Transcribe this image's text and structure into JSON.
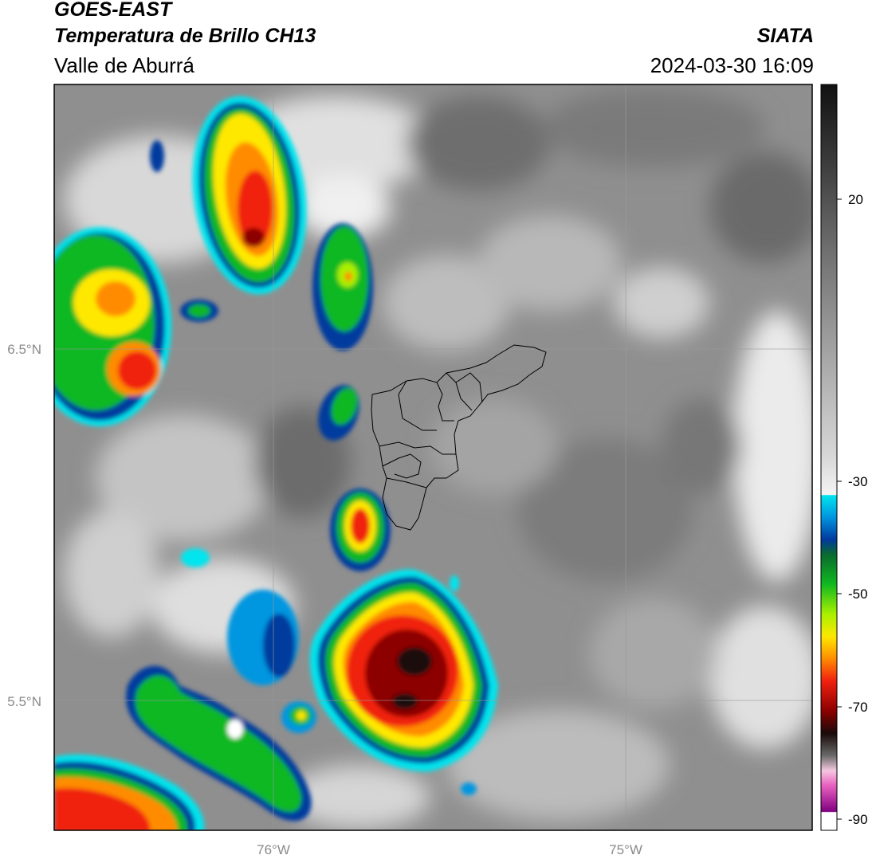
{
  "header": {
    "satellite": "GOES-EAST",
    "product": "Temperatura de Brillo CH13",
    "organization": "SIATA",
    "region": "Valle de Aburrá",
    "timestamp": "2024-03-30 16:09"
  },
  "map_axes": {
    "lat_ticks": [
      "6.5°N",
      "5.5°N"
    ],
    "lon_ticks": [
      "76°W",
      "75°W"
    ],
    "gridlines": true
  },
  "colorbar": {
    "ticks": [
      "20",
      "-30",
      "-50",
      "-70",
      "-90"
    ],
    "colors": {
      "warm_gray": [
        "#111111",
        "#3a3a3a",
        "#6a6a6a",
        "#9a9a9a",
        "#c8c8c8",
        "#f2f2f2"
      ],
      "cold": [
        "#00e5ee",
        "#0096e0",
        "#003a9e",
        "#0a6a30",
        "#10b820",
        "#a8f000",
        "#ffe800",
        "#ff8c00",
        "#f02010",
        "#8c0000",
        "#1a0a0a"
      ],
      "coldest": [
        "#b0a0a8",
        "#f5c8e0",
        "#e860c0",
        "#a02090",
        "#800080",
        "#ffffff"
      ]
    }
  },
  "colors": {
    "frame": "#000000",
    "gridline": "#9a9a9a",
    "boundary": "#000000"
  }
}
